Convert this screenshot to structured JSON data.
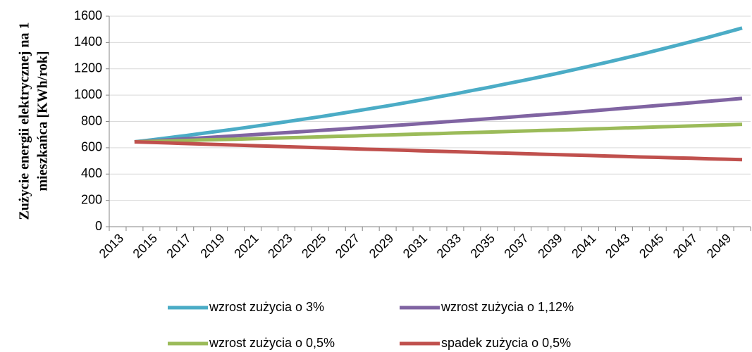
{
  "chart_data": {
    "type": "line",
    "ylabel": [
      "Zużycie energii elektrycznej  na 1",
      "mieszkańca  [KWh/rok]"
    ],
    "categories": [
      "2013",
      null,
      "2015",
      null,
      "2017",
      null,
      "2019",
      null,
      "2021",
      null,
      "2023",
      null,
      "2025",
      null,
      "2027",
      null,
      "2029",
      null,
      "2031",
      null,
      "2033",
      null,
      "2035",
      null,
      "2037",
      null,
      "2039",
      null,
      "2041",
      null,
      "2043",
      null,
      "2045",
      null,
      "2047",
      null,
      "2049",
      null
    ],
    "series": [
      {
        "name": "wzrost zużycia o 3%",
        "color": "#4bacc6",
        "values": [
          null,
          645,
          660,
          676,
          692,
          709,
          726,
          743,
          761,
          779,
          798,
          817,
          836,
          856,
          877,
          898,
          919,
          941,
          964,
          987,
          1010,
          1035,
          1059,
          1085,
          1111,
          1137,
          1164,
          1192,
          1221,
          1250,
          1280,
          1310,
          1342,
          1374,
          1407,
          1440,
          1475,
          1510
        ]
      },
      {
        "name": "wzrost zużycia o 1,12%",
        "color": "#8064a2",
        "values": [
          null,
          645,
          652,
          660,
          668,
          675,
          683,
          691,
          699,
          707,
          715,
          723,
          732,
          740,
          749,
          757,
          766,
          775,
          784,
          793,
          802,
          811,
          821,
          830,
          840,
          850,
          859,
          869,
          879,
          890,
          900,
          910,
          921,
          931,
          942,
          953,
          964,
          975
        ]
      },
      {
        "name": "wzrost zużycia o 0,5%",
        "color": "#9bbb59",
        "values": [
          null,
          645,
          648,
          652,
          655,
          659,
          662,
          665,
          669,
          672,
          676,
          679,
          683,
          687,
          690,
          694,
          697,
          701,
          705,
          708,
          712,
          716,
          719,
          723,
          727,
          731,
          734,
          738,
          742,
          746,
          750,
          754,
          758,
          762,
          766,
          770,
          774,
          778
        ]
      },
      {
        "name": "spadek zużycia o 0,5%",
        "color": "#c0504d",
        "values": [
          null,
          645,
          641,
          637,
          632,
          628,
          624,
          620,
          616,
          612,
          608,
          604,
          600,
          596,
          592,
          588,
          585,
          581,
          577,
          573,
          570,
          566,
          562,
          559,
          555,
          551,
          548,
          544,
          541,
          537,
          534,
          530,
          527,
          523,
          520,
          516,
          513,
          510
        ]
      }
    ],
    "ylim": [
      0,
      1600
    ],
    "yticks": [
      0,
      200,
      400,
      600,
      800,
      1000,
      1200,
      1400,
      1600
    ],
    "grid": true
  }
}
